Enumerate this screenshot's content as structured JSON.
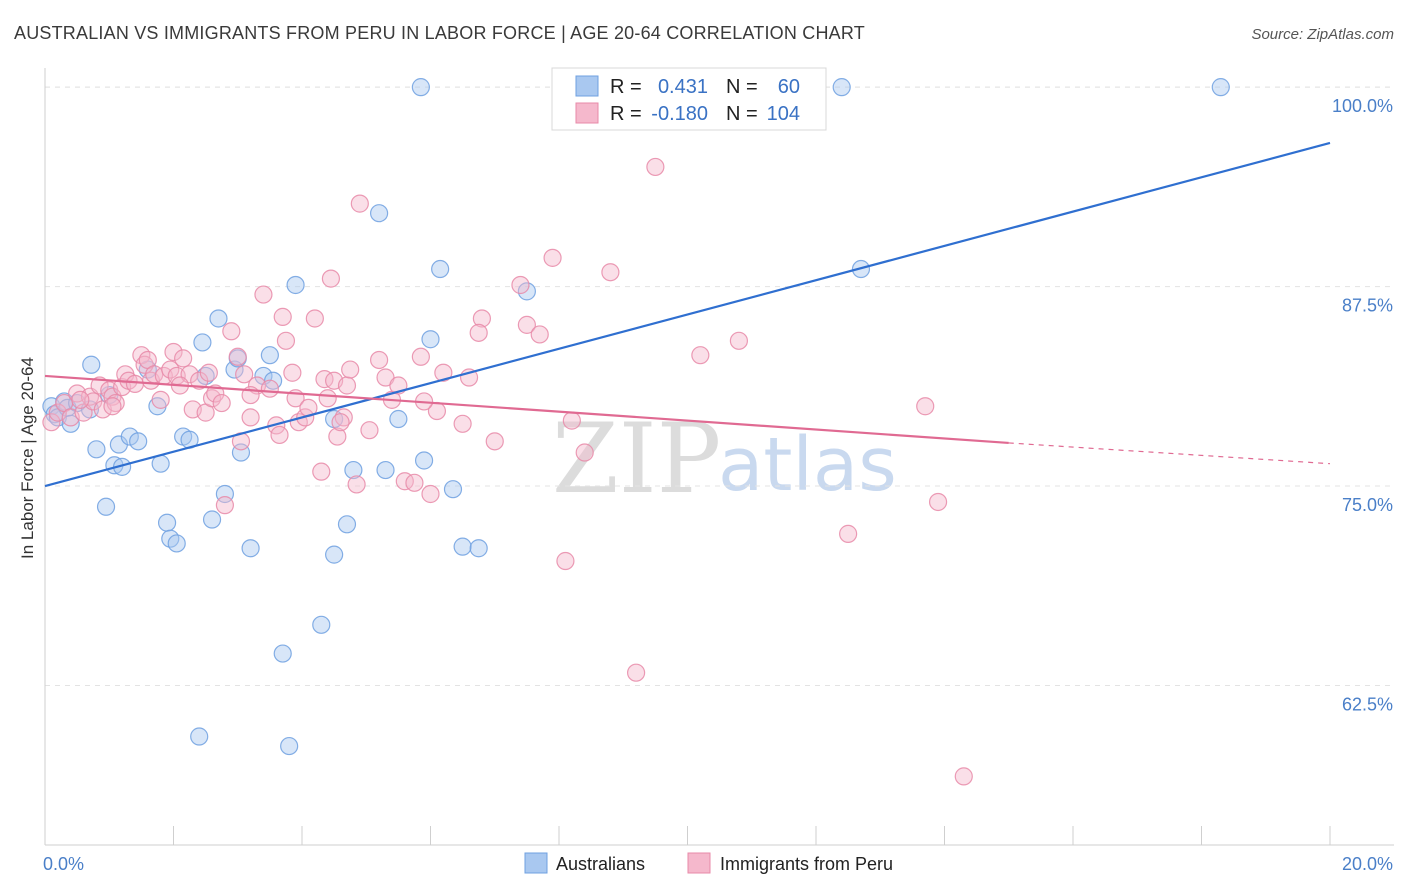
{
  "header": {
    "title": "AUSTRALIAN VS IMMIGRANTS FROM PERU IN LABOR FORCE | AGE 20-64 CORRELATION CHART",
    "source": "Source: ZipAtlas.com"
  },
  "watermark": {
    "zip": "ZIP",
    "atlas": "atlas"
  },
  "legend": {
    "rows": [
      {
        "r_label": "R =",
        "r_value": "0.431",
        "n_label": "N =",
        "n_value": "60",
        "color": "#a9c8f0"
      },
      {
        "r_label": "R =",
        "r_value": "-0.180",
        "n_label": "N =",
        "n_value": "104",
        "color": "#f5b8cc"
      }
    ]
  },
  "bottom_legend": [
    {
      "label": "Australians",
      "color": "#a9c8f0"
    },
    {
      "label": "Immigrants from Peru",
      "color": "#f5b8cc"
    }
  ],
  "chart_data": {
    "type": "scatter",
    "title": "AUSTRALIAN VS IMMIGRANTS FROM PERU IN LABOR FORCE | AGE 20-64 CORRELATION CHART",
    "ylabel": "In Labor Force | Age 20-64",
    "xlabel": "",
    "x_tick_labels": [
      "0.0%",
      "20.0%"
    ],
    "y_tick_labels": [
      "100.0%",
      "87.5%",
      "75.0%",
      "62.5%"
    ],
    "y_ticks": [
      100,
      87.5,
      75,
      62.5
    ],
    "xlim": [
      0,
      20
    ],
    "ylim": [
      52.5,
      101.2
    ],
    "grid": true,
    "series": [
      {
        "name": "Australians",
        "color": "#6fa0e0",
        "fill": "#a9c8f0",
        "trend": {
          "x": [
            0,
            20
          ],
          "y": [
            75.0,
            96.5
          ],
          "color": "#2f6fd0"
        },
        "points": [
          [
            0.1,
            80.0
          ],
          [
            0.15,
            79.5
          ],
          [
            0.2,
            79.3
          ],
          [
            0.3,
            80.3
          ],
          [
            0.35,
            79.9
          ],
          [
            0.4,
            78.9
          ],
          [
            0.5,
            80.2
          ],
          [
            0.7,
            79.8
          ],
          [
            0.72,
            82.6
          ],
          [
            0.8,
            77.3
          ],
          [
            0.95,
            73.7
          ],
          [
            1.0,
            80.7
          ],
          [
            1.08,
            76.3
          ],
          [
            1.15,
            77.6
          ],
          [
            1.2,
            76.2
          ],
          [
            1.32,
            78.1
          ],
          [
            1.45,
            77.8
          ],
          [
            1.6,
            82.3
          ],
          [
            1.75,
            80.0
          ],
          [
            1.8,
            76.4
          ],
          [
            1.9,
            72.7
          ],
          [
            1.95,
            71.7
          ],
          [
            2.05,
            71.4
          ],
          [
            2.15,
            78.1
          ],
          [
            2.25,
            77.9
          ],
          [
            2.45,
            84.0
          ],
          [
            2.5,
            81.9
          ],
          [
            2.6,
            72.9
          ],
          [
            2.7,
            85.5
          ],
          [
            2.8,
            74.5
          ],
          [
            2.95,
            82.3
          ],
          [
            3.0,
            83.0
          ],
          [
            3.05,
            77.1
          ],
          [
            3.2,
            71.1
          ],
          [
            3.4,
            81.9
          ],
          [
            3.5,
            83.2
          ],
          [
            3.55,
            81.6
          ],
          [
            3.9,
            87.6
          ],
          [
            3.7,
            64.5
          ],
          [
            3.8,
            58.7
          ],
          [
            2.4,
            59.3
          ],
          [
            4.3,
            66.3
          ],
          [
            4.5,
            70.7
          ],
          [
            4.5,
            79.2
          ],
          [
            4.7,
            72.6
          ],
          [
            4.8,
            76.0
          ],
          [
            5.2,
            92.1
          ],
          [
            5.3,
            76.0
          ],
          [
            5.5,
            79.2
          ],
          [
            5.85,
            100.0
          ],
          [
            5.9,
            76.6
          ],
          [
            6.0,
            84.2
          ],
          [
            6.15,
            88.6
          ],
          [
            6.35,
            74.8
          ],
          [
            6.5,
            71.2
          ],
          [
            6.75,
            71.1
          ],
          [
            7.5,
            87.2
          ],
          [
            12.4,
            100.0
          ],
          [
            12.7,
            88.6
          ],
          [
            18.3,
            100.0
          ]
        ]
      },
      {
        "name": "Immigrants from Peru",
        "color": "#e88aa8",
        "fill": "#f5b8cc",
        "trend": {
          "x": [
            0,
            15
          ],
          "y": [
            81.9,
            77.7
          ],
          "color": "#e06a92",
          "dashed_extension": {
            "x": [
              15,
              20
            ],
            "y": [
              77.7,
              76.4
            ]
          }
        },
        "points": [
          [
            0.1,
            79.0
          ],
          [
            0.2,
            79.6
          ],
          [
            0.3,
            80.2
          ],
          [
            0.4,
            79.3
          ],
          [
            0.5,
            80.8
          ],
          [
            0.6,
            79.6
          ],
          [
            0.7,
            80.6
          ],
          [
            0.75,
            80.3
          ],
          [
            0.85,
            81.3
          ],
          [
            0.9,
            79.8
          ],
          [
            1.0,
            81.0
          ],
          [
            1.05,
            80.6
          ],
          [
            1.1,
            80.2
          ],
          [
            1.2,
            81.2
          ],
          [
            1.25,
            82.0
          ],
          [
            1.3,
            81.6
          ],
          [
            1.4,
            81.4
          ],
          [
            1.5,
            83.2
          ],
          [
            1.55,
            82.6
          ],
          [
            1.6,
            82.9
          ],
          [
            1.65,
            81.6
          ],
          [
            1.7,
            82.0
          ],
          [
            1.8,
            80.4
          ],
          [
            1.85,
            81.9
          ],
          [
            1.95,
            82.3
          ],
          [
            2.0,
            83.4
          ],
          [
            2.05,
            81.9
          ],
          [
            2.15,
            83.0
          ],
          [
            2.25,
            82.0
          ],
          [
            2.3,
            79.8
          ],
          [
            2.4,
            81.6
          ],
          [
            2.5,
            79.6
          ],
          [
            2.55,
            82.1
          ],
          [
            2.6,
            80.5
          ],
          [
            2.65,
            80.8
          ],
          [
            2.75,
            80.2
          ],
          [
            2.8,
            73.8
          ],
          [
            2.9,
            84.7
          ],
          [
            3.0,
            83.1
          ],
          [
            3.05,
            77.8
          ],
          [
            3.1,
            82.0
          ],
          [
            3.2,
            79.3
          ],
          [
            3.3,
            81.3
          ],
          [
            3.4,
            87.0
          ],
          [
            3.5,
            81.1
          ],
          [
            3.6,
            78.8
          ],
          [
            3.65,
            78.2
          ],
          [
            3.7,
            85.6
          ],
          [
            3.75,
            84.1
          ],
          [
            3.85,
            82.1
          ],
          [
            3.9,
            80.5
          ],
          [
            3.95,
            79.0
          ],
          [
            4.05,
            79.3
          ],
          [
            4.1,
            79.9
          ],
          [
            4.2,
            85.5
          ],
          [
            4.3,
            75.9
          ],
          [
            4.35,
            81.7
          ],
          [
            4.4,
            80.5
          ],
          [
            4.45,
            88.0
          ],
          [
            4.5,
            81.6
          ],
          [
            4.55,
            78.1
          ],
          [
            4.65,
            79.3
          ],
          [
            4.7,
            81.3
          ],
          [
            4.75,
            82.3
          ],
          [
            4.85,
            75.1
          ],
          [
            4.9,
            92.7
          ],
          [
            5.05,
            78.5
          ],
          [
            5.2,
            82.9
          ],
          [
            5.3,
            81.8
          ],
          [
            5.4,
            80.4
          ],
          [
            5.5,
            81.3
          ],
          [
            5.6,
            75.3
          ],
          [
            5.75,
            75.2
          ],
          [
            5.85,
            83.1
          ],
          [
            6.0,
            74.5
          ],
          [
            6.1,
            79.7
          ],
          [
            6.2,
            82.1
          ],
          [
            6.5,
            78.9
          ],
          [
            6.6,
            81.8
          ],
          [
            6.8,
            85.5
          ],
          [
            6.75,
            84.6
          ],
          [
            7.0,
            77.8
          ],
          [
            7.4,
            87.6
          ],
          [
            7.5,
            85.1
          ],
          [
            7.7,
            84.5
          ],
          [
            7.9,
            89.3
          ],
          [
            8.1,
            70.3
          ],
          [
            8.2,
            79.1
          ],
          [
            8.4,
            77.1
          ],
          [
            8.8,
            88.4
          ],
          [
            9.5,
            95.0
          ],
          [
            9.2,
            63.3
          ],
          [
            10.2,
            83.2
          ],
          [
            10.8,
            84.1
          ],
          [
            12.5,
            72.0
          ],
          [
            13.7,
            80.0
          ],
          [
            13.9,
            74.0
          ],
          [
            14.3,
            56.8
          ],
          [
            1.05,
            80.0
          ],
          [
            2.1,
            81.3
          ],
          [
            3.2,
            80.7
          ],
          [
            4.6,
            79.0
          ],
          [
            5.9,
            80.3
          ],
          [
            0.55,
            80.4
          ]
        ]
      }
    ],
    "legend_placement": "top-center",
    "bottom_legend_placement": "bottom-center"
  }
}
